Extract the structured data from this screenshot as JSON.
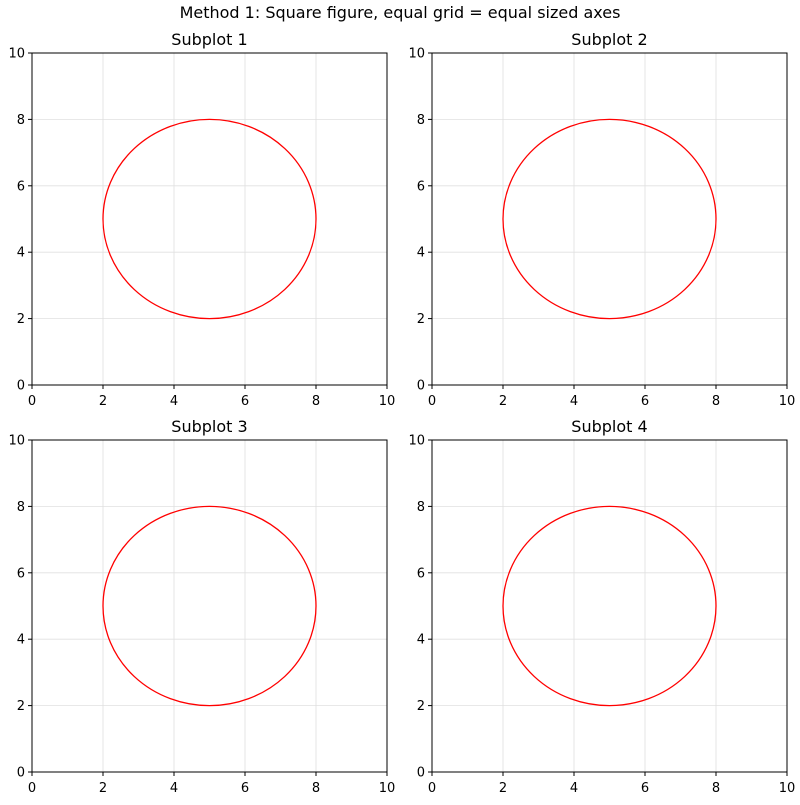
{
  "figure": {
    "suptitle": "Method 1: Square figure, equal grid = equal sized axes"
  },
  "colors": {
    "circle": "#ff0000",
    "grid": "#e0e0e0",
    "axes": "#000000",
    "background": "#ffffff"
  },
  "chart_data": [
    {
      "type": "line",
      "title": "Subplot 1",
      "xlabel": "",
      "ylabel": "",
      "xlim": [
        0,
        10
      ],
      "ylim": [
        0,
        10
      ],
      "xticks": [
        0,
        2,
        4,
        6,
        8,
        10
      ],
      "yticks": [
        0,
        2,
        4,
        6,
        8,
        10
      ],
      "grid": true,
      "series": [
        {
          "name": "circle",
          "shape": "circle",
          "center": [
            5,
            5
          ],
          "radius": 3,
          "color": "#ff0000"
        }
      ]
    },
    {
      "type": "line",
      "title": "Subplot 2",
      "xlabel": "",
      "ylabel": "",
      "xlim": [
        0,
        10
      ],
      "ylim": [
        0,
        10
      ],
      "xticks": [
        0,
        2,
        4,
        6,
        8,
        10
      ],
      "yticks": [
        0,
        2,
        4,
        6,
        8,
        10
      ],
      "grid": true,
      "series": [
        {
          "name": "circle",
          "shape": "circle",
          "center": [
            5,
            5
          ],
          "radius": 3,
          "color": "#ff0000"
        }
      ]
    },
    {
      "type": "line",
      "title": "Subplot 3",
      "xlabel": "",
      "ylabel": "",
      "xlim": [
        0,
        10
      ],
      "ylim": [
        0,
        10
      ],
      "xticks": [
        0,
        2,
        4,
        6,
        8,
        10
      ],
      "yticks": [
        0,
        2,
        4,
        6,
        8,
        10
      ],
      "grid": true,
      "series": [
        {
          "name": "circle",
          "shape": "circle",
          "center": [
            5,
            5
          ],
          "radius": 3,
          "color": "#ff0000"
        }
      ]
    },
    {
      "type": "line",
      "title": "Subplot 4",
      "xlabel": "",
      "ylabel": "",
      "xlim": [
        0,
        10
      ],
      "ylim": [
        0,
        10
      ],
      "xticks": [
        0,
        2,
        4,
        6,
        8,
        10
      ],
      "yticks": [
        0,
        2,
        4,
        6,
        8,
        10
      ],
      "grid": true,
      "series": [
        {
          "name": "circle",
          "shape": "circle",
          "center": [
            5,
            5
          ],
          "radius": 3,
          "color": "#ff0000"
        }
      ]
    }
  ]
}
